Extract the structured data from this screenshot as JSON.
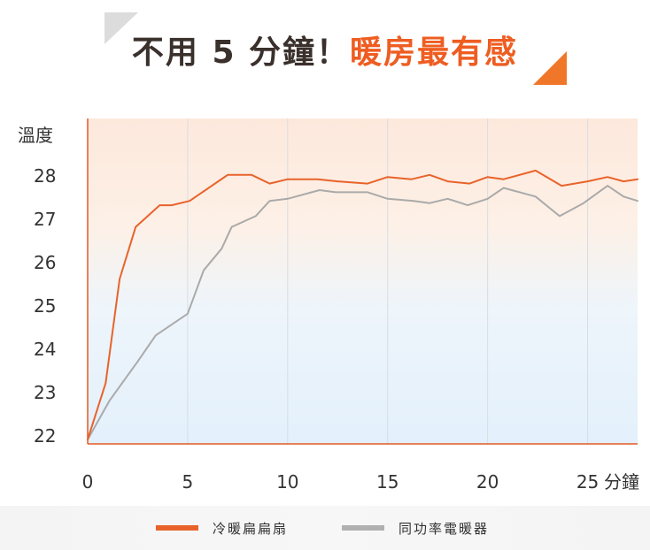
{
  "title": {
    "part1": "不用 5 分鐘！",
    "part2": "暖房最有感"
  },
  "colors": {
    "fan": "#e8632a",
    "heater": "#aaaaaa",
    "accent": "#ee5d21",
    "title_dark": "#3a302c"
  },
  "legend": [
    {
      "label": "冷暖扁扁扇",
      "color": "#e8632a"
    },
    {
      "label": "同功率電暖器",
      "color": "#b0b0b0"
    }
  ],
  "chart_data": {
    "type": "line",
    "ylabel": "溫度",
    "xlabel_unit": "分鐘",
    "xlim": [
      0,
      27.5
    ],
    "ylim": [
      21.8,
      29.3
    ],
    "x_ticks": [
      0,
      5,
      10,
      15,
      20,
      25
    ],
    "y_ticks": [
      22,
      23,
      24,
      25,
      26,
      27,
      28
    ],
    "grid": "vertical",
    "legend_position": "bottom",
    "series": [
      {
        "name": "冷暖扁扁扇",
        "color": "#e8632a",
        "x": [
          0,
          0.9,
          1.6,
          2.4,
          3.6,
          4.2,
          5.1,
          7.0,
          8.2,
          9.1,
          10.0,
          11.5,
          12.5,
          14.0,
          15.0,
          16.2,
          17.1,
          18.0,
          19.1,
          20.0,
          20.8,
          22.4,
          23.7,
          25.0,
          26.0,
          26.8,
          27.5
        ],
        "values": [
          21.9,
          23.2,
          25.6,
          26.8,
          27.3,
          27.3,
          27.4,
          28.0,
          28.0,
          27.8,
          27.9,
          27.9,
          27.85,
          27.8,
          27.95,
          27.9,
          28.0,
          27.85,
          27.8,
          27.95,
          27.9,
          28.1,
          27.75,
          27.85,
          27.95,
          27.85,
          27.9
        ]
      },
      {
        "name": "同功率電暖器",
        "color": "#aaaaaa",
        "x": [
          0,
          1.1,
          2.5,
          3.4,
          5.0,
          5.8,
          6.7,
          7.2,
          8.4,
          9.1,
          10.0,
          11.6,
          12.4,
          14.0,
          15.0,
          16.3,
          17.1,
          18.0,
          19.0,
          20.0,
          20.8,
          22.4,
          23.6,
          24.8,
          26.0,
          26.8,
          27.5
        ],
        "values": [
          21.9,
          22.8,
          23.7,
          24.3,
          24.8,
          25.8,
          26.3,
          26.8,
          27.05,
          27.4,
          27.45,
          27.65,
          27.6,
          27.6,
          27.45,
          27.4,
          27.35,
          27.45,
          27.3,
          27.45,
          27.7,
          27.5,
          27.05,
          27.35,
          27.75,
          27.5,
          27.4
        ]
      }
    ]
  }
}
